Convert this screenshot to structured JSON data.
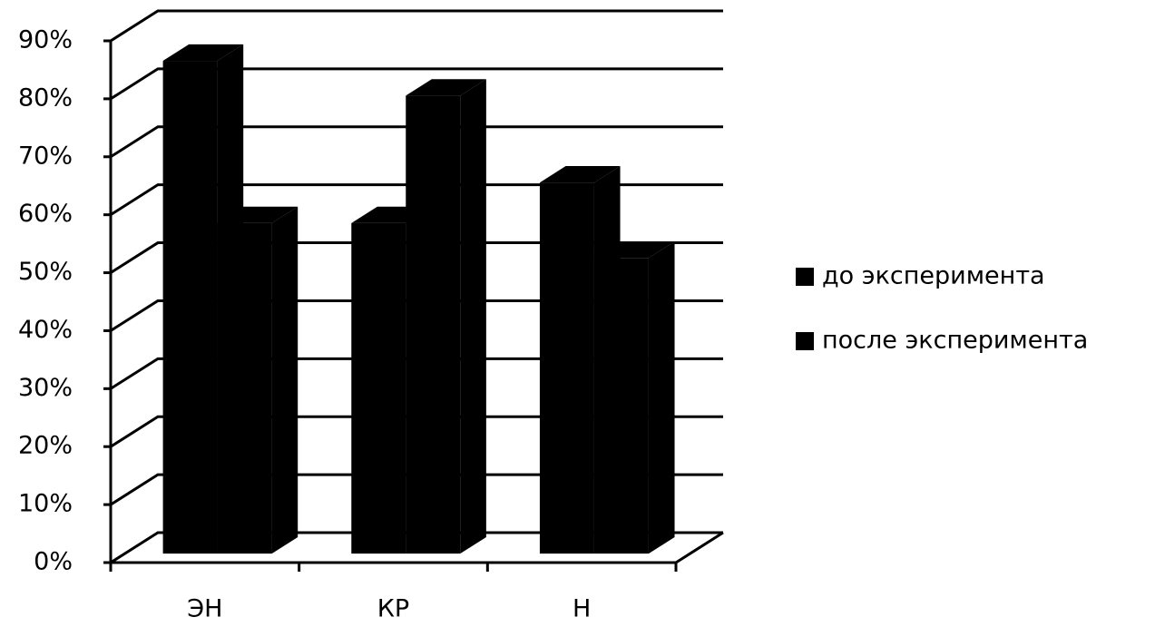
{
  "chart_data": {
    "type": "bar3d",
    "categories": [
      "ЭН",
      "КР",
      "Н"
    ],
    "series": [
      {
        "name": "до эксперимента",
        "color": "#000000",
        "values": [
          85,
          57,
          64
        ]
      },
      {
        "name": "после эксперимента",
        "color": "#000000",
        "values": [
          57,
          79,
          51
        ]
      }
    ],
    "ylim": [
      0,
      90
    ],
    "yticks": [
      {
        "value": 0,
        "label": "0%"
      },
      {
        "value": 10,
        "label": "10%"
      },
      {
        "value": 20,
        "label": "20%"
      },
      {
        "value": 30,
        "label": "30%"
      },
      {
        "value": 40,
        "label": "40%"
      },
      {
        "value": 50,
        "label": "50%"
      },
      {
        "value": 60,
        "label": "60%"
      },
      {
        "value": 70,
        "label": "70%"
      },
      {
        "value": 80,
        "label": "80%"
      },
      {
        "value": 90,
        "label": "90%"
      }
    ],
    "grid": true,
    "legend": "right"
  }
}
